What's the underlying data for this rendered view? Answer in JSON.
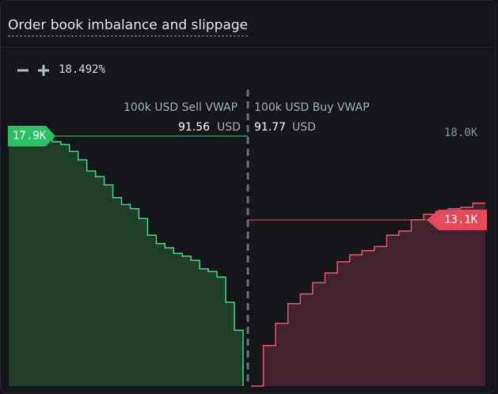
{
  "panel": {
    "title": "Order book imbalance and slippage"
  },
  "zoom": {
    "minus_icon": "minus-icon",
    "plus_icon": "plus-icon",
    "value": "18.492%"
  },
  "vwap": {
    "sell_label": "100k USD Sell VWAP",
    "sell_value": "91.56",
    "sell_unit": "USD",
    "buy_label": "100k USD Buy VWAP",
    "buy_value": "91.77",
    "buy_unit": "USD"
  },
  "colors": {
    "bid_line": "#3ddc84",
    "bid_fill": "#1e3d2b",
    "ask_line": "#f0566a",
    "ask_fill": "#432230",
    "bid_badge": "#2bc064",
    "ask_badge": "#e54a5a"
  },
  "chart_data": {
    "type": "area",
    "y_axis_tick": "18.0K",
    "ylim": [
      0,
      20000
    ],
    "bid_badge_label": "17.9K",
    "ask_badge_label": "13.1K",
    "series": [
      {
        "side": "bid",
        "values": [
          17900,
          17900,
          17900,
          17900,
          17800,
          17500,
          17300,
          16800,
          16200,
          15400,
          15000,
          14400,
          13500,
          13000,
          12700,
          12000,
          10800,
          10200,
          9900,
          9500,
          9300,
          9000,
          8400,
          8200,
          7800,
          6000,
          4000,
          0
        ]
      },
      {
        "side": "ask",
        "values": [
          0,
          2900,
          4500,
          5900,
          6600,
          7400,
          8100,
          8900,
          9400,
          9700,
          10000,
          10800,
          11100,
          11900,
          12300,
          12500,
          12700,
          12800,
          13100,
          13100
        ]
      }
    ]
  }
}
